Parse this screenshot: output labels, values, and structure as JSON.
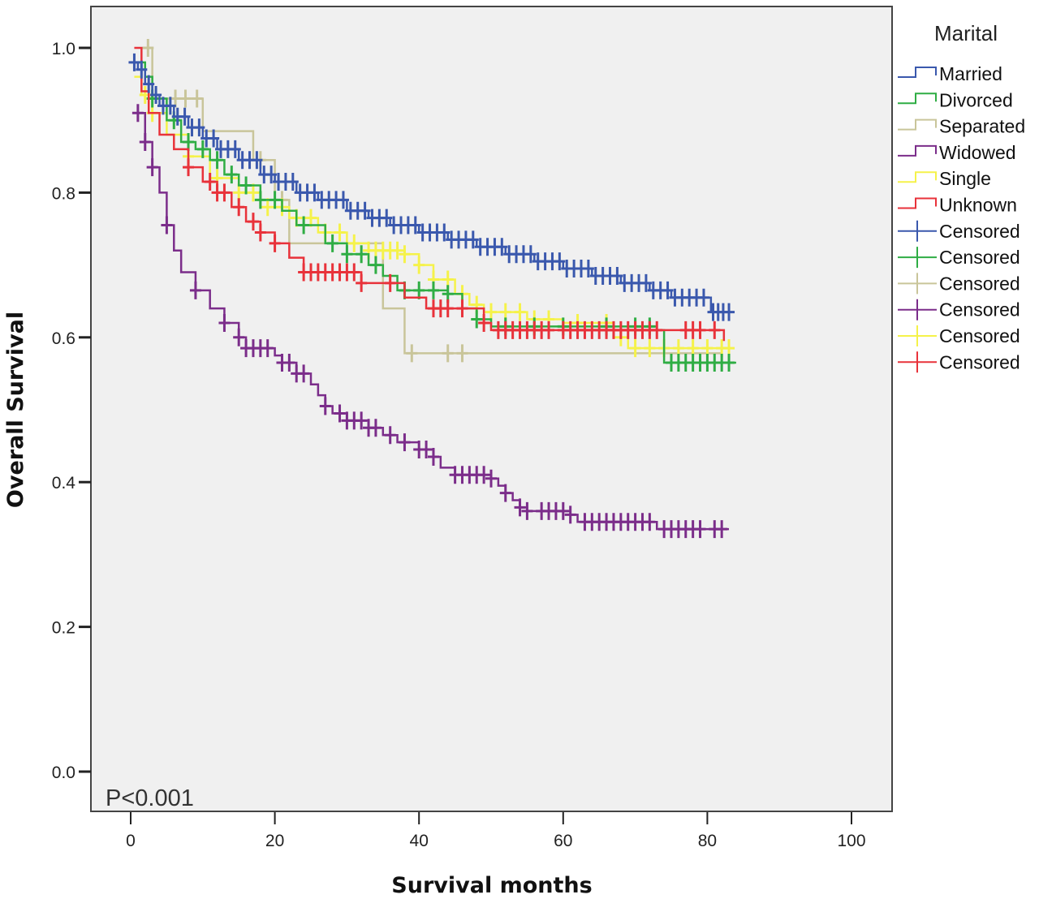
{
  "chart_data": {
    "type": "line",
    "subtype": "kaplan-meier step",
    "title": "",
    "xlabel": "Survival months",
    "ylabel": "Overall Survival",
    "xlim": [
      0,
      100
    ],
    "ylim": [
      0,
      1.0
    ],
    "x_ticks": [
      0,
      20,
      40,
      60,
      80,
      100
    ],
    "x_tick_labels": [
      "0",
      "20",
      "40",
      "60",
      "80",
      "100"
    ],
    "y_ticks": [
      0.0,
      0.2,
      0.4,
      0.6,
      0.8,
      1.0
    ],
    "y_tick_labels": [
      "0.0",
      "0.2",
      "0.4",
      "0.6",
      "0.8",
      "1.0"
    ],
    "grid": false,
    "annotation": "P<0.001",
    "legend": {
      "title": "Marital",
      "placement": "right",
      "entries": [
        {
          "label": "Married",
          "kind": "step",
          "color": "#3a58ad"
        },
        {
          "label": "Divorced",
          "kind": "step",
          "color": "#2fad44"
        },
        {
          "label": "Separated",
          "kind": "step",
          "color": "#c9c59a"
        },
        {
          "label": "Widowed",
          "kind": "step",
          "color": "#7b2d8a"
        },
        {
          "label": "Single",
          "kind": "step",
          "color": "#f5f24a"
        },
        {
          "label": "Unknown",
          "kind": "step",
          "color": "#e8323a"
        },
        {
          "label": "Censored",
          "kind": "censor",
          "color": "#3a58ad"
        },
        {
          "label": "Censored",
          "kind": "censor",
          "color": "#2fad44"
        },
        {
          "label": "Censored",
          "kind": "censor",
          "color": "#c9c59a"
        },
        {
          "label": "Censored",
          "kind": "censor",
          "color": "#7b2d8a"
        },
        {
          "label": "Censored",
          "kind": "censor",
          "color": "#f5f24a"
        },
        {
          "label": "Censored",
          "kind": "censor",
          "color": "#e8323a"
        }
      ]
    },
    "series": [
      {
        "name": "Separated",
        "color": "#c9c59a",
        "points": [
          [
            2,
            1.0
          ],
          [
            3,
            0.93
          ],
          [
            9,
            0.93
          ],
          [
            10,
            0.885
          ],
          [
            16,
            0.885
          ],
          [
            17,
            0.845
          ],
          [
            19,
            0.845
          ],
          [
            20,
            0.79
          ],
          [
            21,
            0.79
          ],
          [
            22,
            0.73
          ],
          [
            24,
            0.73
          ],
          [
            35,
            0.64
          ],
          [
            37,
            0.64
          ],
          [
            38,
            0.578
          ],
          [
            82,
            0.578
          ]
        ],
        "censored": [
          2.4,
          6.2,
          7.6,
          9.2,
          18,
          21,
          39,
          44,
          46
        ]
      },
      {
        "name": "Single",
        "color": "#f5f24a",
        "points": [
          [
            0.5,
            0.96
          ],
          [
            1.5,
            0.935
          ],
          [
            3,
            0.91
          ],
          [
            5,
            0.88
          ],
          [
            8,
            0.85
          ],
          [
            11,
            0.82
          ],
          [
            15,
            0.8
          ],
          [
            18,
            0.78
          ],
          [
            22,
            0.765
          ],
          [
            26,
            0.745
          ],
          [
            30,
            0.73
          ],
          [
            33,
            0.72
          ],
          [
            38,
            0.715
          ],
          [
            40,
            0.7
          ],
          [
            42,
            0.68
          ],
          [
            45,
            0.66
          ],
          [
            47,
            0.645
          ],
          [
            49,
            0.635
          ],
          [
            55,
            0.625
          ],
          [
            60,
            0.62
          ],
          [
            67,
            0.6
          ],
          [
            69,
            0.585
          ],
          [
            83,
            0.585
          ]
        ],
        "censored": [
          2,
          3,
          8,
          12,
          15,
          17,
          19,
          21,
          23,
          25,
          27,
          29,
          31,
          33,
          34,
          35,
          36,
          37,
          38,
          40,
          42,
          44,
          46,
          48,
          50,
          52,
          54,
          56,
          58,
          62,
          66,
          68,
          70,
          72,
          74,
          76,
          78,
          80,
          82,
          83
        ]
      },
      {
        "name": "Divorced",
        "color": "#2fad44",
        "points": [
          [
            0.5,
            0.98
          ],
          [
            2,
            0.96
          ],
          [
            3,
            0.93
          ],
          [
            5,
            0.9
          ],
          [
            7,
            0.87
          ],
          [
            9,
            0.86
          ],
          [
            11,
            0.845
          ],
          [
            13,
            0.825
          ],
          [
            15,
            0.81
          ],
          [
            18,
            0.79
          ],
          [
            21,
            0.775
          ],
          [
            23,
            0.755
          ],
          [
            27,
            0.73
          ],
          [
            30,
            0.715
          ],
          [
            33,
            0.7
          ],
          [
            35,
            0.685
          ],
          [
            37,
            0.665
          ],
          [
            44,
            0.66
          ],
          [
            46,
            0.64
          ],
          [
            48,
            0.625
          ],
          [
            50,
            0.615
          ],
          [
            73,
            0.61
          ],
          [
            74,
            0.565
          ],
          [
            84,
            0.565
          ]
        ],
        "censored": [
          3,
          6,
          8,
          10,
          12,
          14,
          16,
          18,
          20,
          24,
          28,
          30,
          32,
          34,
          38,
          40,
          42,
          44,
          48,
          52,
          56,
          60,
          66,
          70,
          72,
          75,
          76,
          77,
          78,
          79,
          80,
          81,
          82,
          83
        ]
      },
      {
        "name": "Unknown",
        "color": "#e8323a",
        "points": [
          [
            0.5,
            1.0
          ],
          [
            1.5,
            0.94
          ],
          [
            2.5,
            0.91
          ],
          [
            4,
            0.88
          ],
          [
            6,
            0.86
          ],
          [
            8,
            0.835
          ],
          [
            10,
            0.815
          ],
          [
            12,
            0.8
          ],
          [
            14,
            0.78
          ],
          [
            16,
            0.76
          ],
          [
            18,
            0.745
          ],
          [
            20,
            0.73
          ],
          [
            22,
            0.71
          ],
          [
            24,
            0.69
          ],
          [
            30,
            0.69
          ],
          [
            32,
            0.675
          ],
          [
            37,
            0.675
          ],
          [
            38,
            0.655
          ],
          [
            41,
            0.64
          ],
          [
            48,
            0.64
          ],
          [
            49,
            0.62
          ],
          [
            50,
            0.61
          ],
          [
            82,
            0.61
          ],
          [
            82.3,
            0.595
          ]
        ],
        "censored": [
          8,
          11,
          12,
          13,
          15,
          17,
          18,
          20,
          24,
          25,
          26,
          27,
          28,
          29,
          30,
          31,
          32,
          36,
          42,
          43,
          44,
          46,
          49,
          51,
          52,
          53,
          54,
          55,
          56,
          57,
          58,
          60,
          61,
          62,
          63,
          64,
          65,
          66,
          67,
          68,
          69,
          70,
          71,
          72,
          73,
          77,
          78,
          79,
          81
        ]
      },
      {
        "name": "Married",
        "color": "#3a58ad",
        "points": [
          [
            0,
            0.98
          ],
          [
            1,
            0.97
          ],
          [
            2,
            0.95
          ],
          [
            3,
            0.935
          ],
          [
            4,
            0.92
          ],
          [
            6,
            0.905
          ],
          [
            8,
            0.89
          ],
          [
            10,
            0.875
          ],
          [
            12,
            0.86
          ],
          [
            15,
            0.845
          ],
          [
            18,
            0.825
          ],
          [
            20,
            0.815
          ],
          [
            23,
            0.8
          ],
          [
            26,
            0.79
          ],
          [
            30,
            0.775
          ],
          [
            33,
            0.765
          ],
          [
            36,
            0.755
          ],
          [
            40,
            0.745
          ],
          [
            44,
            0.735
          ],
          [
            48,
            0.725
          ],
          [
            52,
            0.715
          ],
          [
            56,
            0.705
          ],
          [
            60,
            0.695
          ],
          [
            64,
            0.685
          ],
          [
            68,
            0.675
          ],
          [
            72,
            0.665
          ],
          [
            75,
            0.655
          ],
          [
            80,
            0.655
          ],
          [
            80.5,
            0.635
          ],
          [
            83,
            0.635
          ]
        ],
        "censored": [
          0.5,
          1.5,
          2.5,
          3.5,
          4.5,
          5.5,
          6.5,
          7.5,
          8.5,
          9.5,
          10.5,
          11.5,
          12.5,
          13.5,
          14.5,
          15.5,
          16.5,
          17.5,
          18.5,
          19.5,
          20.5,
          21.5,
          22.5,
          23.5,
          24.5,
          25.5,
          26.5,
          27.5,
          28.5,
          29.5,
          30.5,
          31.5,
          32.5,
          33.5,
          34.5,
          35.5,
          36.5,
          37.5,
          38.5,
          39.5,
          40.5,
          41.5,
          42.5,
          43.5,
          44.5,
          45.5,
          46.5,
          47.5,
          48.5,
          49.5,
          50.5,
          51.5,
          52.5,
          53.5,
          54.5,
          55.5,
          56.5,
          57.5,
          58.5,
          59.5,
          60.5,
          61.5,
          62.5,
          63.5,
          64.5,
          65.5,
          66.5,
          67.5,
          68.5,
          69.5,
          70.5,
          71.5,
          72.5,
          73.5,
          74.5,
          75.5,
          76.5,
          77.5,
          78.5,
          79.5,
          80.8,
          81.5,
          82.2,
          83
        ]
      },
      {
        "name": "Widowed",
        "color": "#7b2d8a",
        "points": [
          [
            1,
            0.91
          ],
          [
            2,
            0.87
          ],
          [
            3,
            0.835
          ],
          [
            4,
            0.8
          ],
          [
            5,
            0.755
          ],
          [
            6,
            0.72
          ],
          [
            7,
            0.69
          ],
          [
            9,
            0.665
          ],
          [
            11,
            0.64
          ],
          [
            13,
            0.62
          ],
          [
            15,
            0.6
          ],
          [
            16,
            0.585
          ],
          [
            20,
            0.575
          ],
          [
            21,
            0.565
          ],
          [
            23,
            0.55
          ],
          [
            25,
            0.535
          ],
          [
            26,
            0.52
          ],
          [
            27,
            0.505
          ],
          [
            28,
            0.495
          ],
          [
            30,
            0.485
          ],
          [
            33,
            0.475
          ],
          [
            35,
            0.465
          ],
          [
            37,
            0.455
          ],
          [
            40,
            0.445
          ],
          [
            42,
            0.435
          ],
          [
            43,
            0.42
          ],
          [
            45,
            0.41
          ],
          [
            50,
            0.405
          ],
          [
            51,
            0.395
          ],
          [
            52,
            0.385
          ],
          [
            53,
            0.375
          ],
          [
            54,
            0.365
          ],
          [
            55,
            0.36
          ],
          [
            61,
            0.355
          ],
          [
            62,
            0.345
          ],
          [
            72,
            0.345
          ],
          [
            73,
            0.335
          ],
          [
            83,
            0.335
          ]
        ],
        "censored": [
          1,
          2,
          3,
          5,
          9,
          13,
          15,
          16,
          17,
          18,
          19,
          21,
          22,
          23,
          24,
          27,
          29,
          30,
          31,
          32,
          33,
          34,
          36,
          38,
          40,
          41,
          42,
          45,
          46,
          47,
          48,
          49,
          50,
          52,
          54,
          55,
          57,
          58,
          59,
          60,
          61,
          63,
          64,
          65,
          66,
          67,
          68,
          69,
          70,
          71,
          72,
          74,
          75,
          76,
          77,
          78,
          79,
          81,
          82
        ]
      }
    ]
  }
}
